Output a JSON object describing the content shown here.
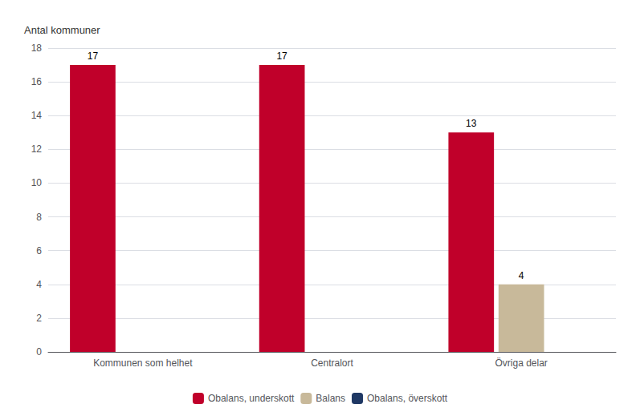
{
  "chart_data": {
    "type": "bar",
    "ylabel": "Antal kommuner",
    "categories": [
      "Kommunen som helhet",
      "Centralort",
      "Övriga delar"
    ],
    "series": [
      {
        "name": "Obalans, underskott",
        "color": "#c0002a",
        "values": [
          17,
          17,
          13
        ]
      },
      {
        "name": "Balans",
        "color": "#c8b99a",
        "values": [
          null,
          null,
          4
        ]
      },
      {
        "name": "Obalans, överskott",
        "color": "#1f3864",
        "values": [
          null,
          null,
          null
        ]
      }
    ],
    "ylim": [
      0,
      18
    ],
    "yticks": [
      0,
      2,
      4,
      6,
      8,
      10,
      12,
      14,
      16,
      18
    ],
    "grid": true,
    "legend": "bottom",
    "data_labels": true
  }
}
